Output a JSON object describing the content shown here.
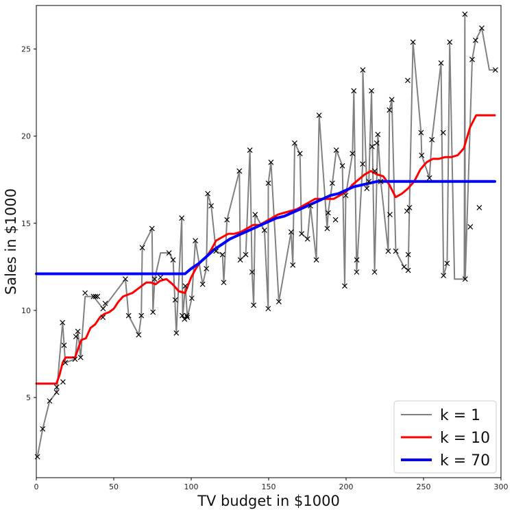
{
  "chart_data": {
    "type": "scatter",
    "title": "",
    "xlabel": "TV budget in $1000",
    "ylabel": "Sales in $1000",
    "xlim": [
      0,
      300
    ],
    "ylim": [
      0.4,
      27.5
    ],
    "xticks": [
      0,
      50,
      100,
      150,
      200,
      250,
      300
    ],
    "yticks": [
      5,
      10,
      15,
      20,
      25
    ],
    "grid": false,
    "legend_position": "lower-right",
    "points": [
      [
        0.7,
        1.6
      ],
      [
        4.1,
        3.2
      ],
      [
        8.6,
        4.8
      ],
      [
        13.1,
        5.3
      ],
      [
        13.2,
        5.6
      ],
      [
        16.9,
        9.3
      ],
      [
        17.2,
        5.9
      ],
      [
        17.9,
        8.0
      ],
      [
        18.7,
        7.0
      ],
      [
        25.0,
        7.2
      ],
      [
        26.8,
        8.8
      ],
      [
        25.6,
        8.5
      ],
      [
        28.6,
        7.3
      ],
      [
        31.5,
        11.0
      ],
      [
        36.9,
        10.8
      ],
      [
        38.2,
        10.8
      ],
      [
        39.5,
        10.8
      ],
      [
        43.0,
        9.6
      ],
      [
        44.5,
        10.4
      ],
      [
        43.1,
        10.1
      ],
      [
        57.5,
        11.8
      ],
      [
        59.6,
        9.7
      ],
      [
        66.1,
        8.6
      ],
      [
        67.8,
        9.7
      ],
      [
        68.4,
        13.6
      ],
      [
        74.7,
        14.7
      ],
      [
        75.3,
        9.9
      ],
      [
        76.4,
        11.8
      ],
      [
        80.2,
        11.9
      ],
      [
        85.7,
        13.3
      ],
      [
        88.3,
        12.9
      ],
      [
        89.7,
        10.6
      ],
      [
        90.4,
        8.7
      ],
      [
        93.9,
        15.3
      ],
      [
        94.2,
        9.7
      ],
      [
        95.7,
        9.5
      ],
      [
        96.2,
        11.4
      ],
      [
        97.2,
        9.7
      ],
      [
        97.5,
        9.6
      ],
      [
        100.4,
        10.7
      ],
      [
        102.7,
        14.0
      ],
      [
        107.4,
        11.5
      ],
      [
        109.8,
        12.4
      ],
      [
        110.7,
        16.7
      ],
      [
        112.9,
        16.0
      ],
      [
        116.0,
        13.4
      ],
      [
        120.2,
        13.2
      ],
      [
        121.0,
        11.6
      ],
      [
        123.1,
        15.2
      ],
      [
        131.1,
        18.0
      ],
      [
        131.7,
        12.9
      ],
      [
        135.2,
        13.2
      ],
      [
        137.9,
        19.2
      ],
      [
        139.3,
        12.2
      ],
      [
        140.3,
        10.3
      ],
      [
        141.3,
        15.5
      ],
      [
        147.3,
        14.6
      ],
      [
        149.7,
        10.1
      ],
      [
        149.8,
        17.3
      ],
      [
        151.5,
        18.5
      ],
      [
        156.6,
        10.5
      ],
      [
        164.5,
        14.5
      ],
      [
        165.6,
        12.6
      ],
      [
        166.8,
        19.6
      ],
      [
        170.2,
        19.0
      ],
      [
        171.3,
        14.4
      ],
      [
        175.1,
        14.1
      ],
      [
        177.0,
        16.0
      ],
      [
        180.8,
        12.9
      ],
      [
        182.6,
        21.2
      ],
      [
        187.8,
        14.7
      ],
      [
        188.4,
        15.6
      ],
      [
        191.1,
        17.3
      ],
      [
        193.2,
        15.2
      ],
      [
        193.7,
        19.2
      ],
      [
        197.6,
        18.3
      ],
      [
        199.1,
        11.4
      ],
      [
        199.8,
        16.6
      ],
      [
        204.1,
        19.0
      ],
      [
        205.0,
        22.6
      ],
      [
        206.8,
        12.2
      ],
      [
        206.9,
        12.9
      ],
      [
        210.7,
        18.4
      ],
      [
        210.8,
        23.8
      ],
      [
        213.4,
        17.0
      ],
      [
        214.7,
        17.4
      ],
      [
        216.4,
        22.6
      ],
      [
        216.8,
        19.4
      ],
      [
        218.4,
        12.2
      ],
      [
        218.5,
        18.0
      ],
      [
        219.8,
        19.6
      ],
      [
        220.5,
        20.1
      ],
      [
        222.4,
        17.4
      ],
      [
        227.2,
        13.4
      ],
      [
        228.0,
        21.5
      ],
      [
        228.3,
        15.5
      ],
      [
        229.5,
        22.1
      ],
      [
        232.1,
        13.4
      ],
      [
        237.4,
        12.5
      ],
      [
        239.3,
        15.7
      ],
      [
        239.8,
        23.2
      ],
      [
        240.1,
        13.2
      ],
      [
        240.1,
        12.3
      ],
      [
        240.9,
        15.9
      ],
      [
        243.2,
        25.4
      ],
      [
        248.4,
        20.2
      ],
      [
        248.8,
        18.9
      ],
      [
        253.8,
        17.6
      ],
      [
        255.4,
        19.8
      ],
      [
        261.3,
        24.2
      ],
      [
        262.7,
        20.2
      ],
      [
        262.9,
        12.0
      ],
      [
        265.2,
        12.7
      ],
      [
        266.9,
        25.4
      ],
      [
        276.7,
        27.0
      ],
      [
        276.9,
        11.8
      ],
      [
        280.2,
        14.8
      ],
      [
        281.4,
        24.4
      ],
      [
        283.6,
        25.5
      ],
      [
        286.0,
        15.9
      ],
      [
        287.6,
        26.2
      ],
      [
        296.4,
        23.8
      ]
    ],
    "series": [
      {
        "name": "k = 1",
        "color": "#808080",
        "x": [
          0.7,
          4.1,
          8.6,
          13.1,
          17.0,
          18.7,
          25.0,
          26.8,
          28.6,
          31.5,
          36.9,
          43.1,
          57.5,
          59.6,
          66.1,
          67.8,
          68.4,
          74.7,
          75.3,
          76.4,
          80.2,
          85.7,
          88.3,
          90.4,
          93.9,
          94.5,
          96.2,
          97.5,
          100.4,
          102.7,
          107.4,
          109.8,
          110.7,
          112.9,
          116.0,
          120.2,
          121.0,
          123.1,
          131.1,
          131.7,
          135.2,
          137.9,
          139.3,
          140.3,
          141.3,
          147.3,
          149.7,
          149.8,
          151.5,
          156.6,
          164.5,
          165.6,
          166.8,
          170.2,
          171.3,
          175.1,
          177.0,
          180.8,
          182.6,
          187.8,
          188.4,
          191.1,
          193.7,
          197.6,
          199.1,
          199.8,
          204.1,
          205.0,
          206.8,
          210.7,
          210.8,
          213.4,
          214.7,
          216.4,
          218.4,
          220.5,
          222.4,
          227.2,
          228.0,
          229.5,
          232.1,
          237.4,
          240.1,
          240.9,
          243.2,
          248.4,
          248.8,
          253.8,
          255.4,
          261.3,
          262.9,
          265.2,
          266.9,
          270.0,
          276.3,
          276.7,
          276.9,
          281.4,
          283.6,
          287.6,
          292.5,
          296.4
        ],
        "y": [
          1.6,
          3.2,
          4.8,
          5.3,
          9.3,
          7.0,
          7.2,
          8.8,
          7.3,
          10.8,
          10.8,
          10.1,
          11.8,
          9.7,
          8.6,
          9.7,
          13.6,
          14.7,
          9.9,
          11.8,
          13.3,
          13.3,
          12.9,
          8.7,
          15.3,
          9.6,
          11.4,
          9.6,
          10.7,
          14.0,
          11.5,
          12.4,
          16.7,
          16.0,
          13.4,
          13.2,
          11.6,
          15.2,
          18.0,
          12.9,
          13.2,
          19.2,
          12.2,
          10.3,
          15.5,
          14.6,
          10.1,
          17.3,
          18.5,
          10.5,
          14.5,
          12.6,
          19.6,
          19.0,
          14.4,
          14.1,
          16.0,
          12.9,
          21.2,
          14.7,
          15.6,
          17.3,
          19.2,
          18.3,
          11.4,
          16.6,
          19.0,
          22.6,
          12.2,
          18.4,
          23.8,
          17.0,
          17.4,
          22.6,
          12.2,
          20.1,
          17.4,
          13.4,
          21.5,
          22.1,
          13.4,
          12.5,
          12.3,
          15.9,
          25.4,
          20.2,
          18.9,
          17.6,
          19.8,
          24.2,
          12.0,
          12.7,
          25.4,
          11.8,
          11.8,
          27.0,
          11.8,
          24.4,
          25.5,
          26.2,
          23.8,
          23.8
        ]
      },
      {
        "name": "k = 10",
        "color": "#ff0000",
        "x": [
          0,
          13,
          15,
          17,
          19,
          25,
          27,
          29,
          32,
          35,
          38,
          41,
          44,
          47,
          50,
          53,
          56,
          59,
          62,
          65,
          68,
          71,
          74,
          77,
          80,
          84,
          88,
          92,
          96,
          100,
          103,
          106,
          110,
          113,
          116,
          120,
          124,
          128,
          132,
          136,
          140,
          144,
          148,
          152,
          156,
          160,
          164,
          168,
          172,
          176,
          180,
          184,
          188,
          192,
          196,
          200,
          204,
          208,
          212,
          216,
          220,
          224,
          228,
          232,
          236,
          240,
          244,
          248,
          252,
          256,
          260,
          264,
          268,
          272,
          276,
          280,
          284,
          288,
          292,
          296
        ],
        "y": [
          5.8,
          5.8,
          6.3,
          7.0,
          7.3,
          7.3,
          7.8,
          8.3,
          8.4,
          9.0,
          9.2,
          9.6,
          9.8,
          9.9,
          10.1,
          10.5,
          10.8,
          10.9,
          11.0,
          11.2,
          11.4,
          11.6,
          11.6,
          11.5,
          11.7,
          11.8,
          11.5,
          11.1,
          11.0,
          11.9,
          12.4,
          12.8,
          13.1,
          13.5,
          14.0,
          14.2,
          14.4,
          14.4,
          14.5,
          14.7,
          14.9,
          14.9,
          15.1,
          15.3,
          15.5,
          15.6,
          15.7,
          15.8,
          16.0,
          16.2,
          16.4,
          16.4,
          16.4,
          16.4,
          16.6,
          16.8,
          17.2,
          17.5,
          17.8,
          18.0,
          17.8,
          17.7,
          17.2,
          16.5,
          16.7,
          17.0,
          17.4,
          18.1,
          18.5,
          18.7,
          18.7,
          18.8,
          18.8,
          18.9,
          19.3,
          20.5,
          21.2,
          21.2,
          21.2,
          21.2
        ],
        "width": 3
      },
      {
        "name": "k = 70",
        "color": "#0000ff",
        "x": [
          0,
          96,
          100,
          105,
          110,
          115,
          120,
          125,
          130,
          135,
          140,
          145,
          150,
          155,
          160,
          165,
          170,
          175,
          180,
          185,
          190,
          195,
          200,
          205,
          210,
          215,
          220,
          225,
          230,
          235,
          240,
          245,
          250,
          255,
          260,
          265,
          270,
          275,
          280,
          285,
          290,
          296
        ],
        "y": [
          12.1,
          12.1,
          12.4,
          12.7,
          13.1,
          13.5,
          13.8,
          14.1,
          14.3,
          14.5,
          14.7,
          14.9,
          15.1,
          15.3,
          15.4,
          15.6,
          15.8,
          16.0,
          16.2,
          16.4,
          16.6,
          16.7,
          16.9,
          17.1,
          17.2,
          17.3,
          17.4,
          17.4,
          17.4,
          17.4,
          17.4,
          17.4,
          17.4,
          17.4,
          17.4,
          17.4,
          17.4,
          17.4,
          17.4,
          17.4,
          17.4,
          17.4
        ],
        "width": 4
      }
    ]
  }
}
